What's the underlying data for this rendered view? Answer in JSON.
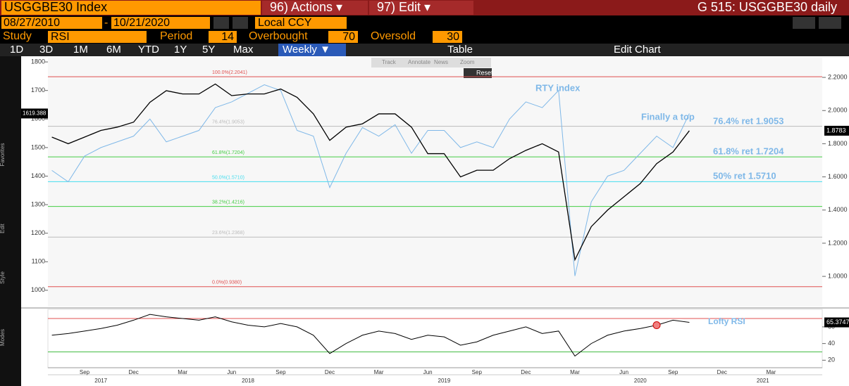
{
  "header": {
    "ticker": "USGGBE30 Index",
    "actions": "96) Actions ▾",
    "edit": "97) Edit ▾",
    "page": "G 515: USGGBE30 daily"
  },
  "toolbar": {
    "start_date": "08/27/2010",
    "end_date": "10/21/2020",
    "currency": "Local CCY",
    "study_label": "Study",
    "study": "RSI",
    "period_label": "Period",
    "period": 14,
    "overbought_label": "Overbought",
    "overbought": 70,
    "oversold_label": "Oversold",
    "oversold": 30,
    "ranges": [
      "1D",
      "3D",
      "1M",
      "6M",
      "YTD",
      "1Y",
      "5Y",
      "Max"
    ],
    "frequency": "Weekly ▼",
    "table": "Table",
    "edit_chart": "Edit Chart",
    "tools": [
      "Track",
      "Annotate",
      "News",
      "Zoom"
    ],
    "reset": "Reset",
    "side_labels": [
      "Favorites",
      "Edit",
      "Style",
      "Modes"
    ]
  },
  "chart_data": {
    "type": "line",
    "categories": [
      null,
      null,
      "Sep",
      null,
      null,
      "Dec",
      null,
      null,
      "Mar",
      null,
      null,
      "Jun",
      null,
      null,
      "Sep",
      null,
      null,
      "Dec",
      null,
      null,
      "Mar",
      null,
      null,
      "Jun",
      null,
      null,
      "Sep",
      null,
      null,
      "Dec",
      null,
      null,
      "Mar",
      null,
      null,
      "Jun",
      null,
      null,
      "Sep",
      null,
      null,
      "Dec",
      null,
      null,
      "Mar",
      null
    ],
    "years": [
      "2017",
      "2018",
      "2019",
      "2020",
      "2021"
    ],
    "ylim": [
      943,
      1815
    ],
    "yticks": [
      1000,
      1100,
      1200,
      1300,
      1400,
      1500,
      1600,
      1700,
      1800
    ],
    "y2lim": [
      0.818,
      2.319
    ],
    "y2ticks": [
      {
        "value": 1,
        "label": "1.0000"
      },
      {
        "value": 1.2,
        "label": "1.2000"
      },
      {
        "value": 1.4,
        "label": "1.4000"
      },
      {
        "value": 1.6,
        "label": "1.6000"
      },
      {
        "value": 1.8,
        "label": "1.8000"
      },
      {
        "value": 2,
        "label": "2.0000"
      },
      {
        "value": 2.2,
        "label": "2.2000"
      }
    ],
    "series": [
      {
        "name": "USGGBE30",
        "color": "#000000",
        "axis": "y2",
        "values": [
          1.84,
          1.8,
          1.84,
          1.88,
          1.9,
          1.93,
          2.05,
          2.12,
          2.1,
          2.1,
          2.16,
          2.09,
          2.1,
          2.1,
          2.13,
          2.08,
          1.98,
          1.82,
          1.9,
          1.92,
          1.98,
          1.98,
          1.9,
          1.74,
          1.74,
          1.6,
          1.64,
          1.64,
          1.71,
          1.76,
          1.8,
          1.75,
          1.1,
          1.3,
          1.4,
          1.48,
          1.56,
          1.68,
          1.75,
          1.8783,
          null,
          null,
          null,
          null,
          null,
          null
        ]
      },
      {
        "name": "RTY index",
        "color": "#7fb8e8",
        "axis": "y",
        "values": [
          1420,
          1380,
          1470,
          1500,
          1520,
          1540,
          1600,
          1520,
          1540,
          1560,
          1640,
          1660,
          1690,
          1720,
          1700,
          1560,
          1540,
          1360,
          1480,
          1570,
          1540,
          1580,
          1480,
          1560,
          1560,
          1500,
          1520,
          1500,
          1600,
          1660,
          1640,
          1700,
          1050,
          1310,
          1400,
          1420,
          1480,
          1540,
          1500,
          1619.388,
          null,
          null,
          null,
          null,
          null,
          null
        ]
      }
    ],
    "fib_levels": [
      {
        "label": "100.0%(2.2041)",
        "value": 2.2041,
        "color": "#e05050"
      },
      {
        "label": "76.4%(1.9053)",
        "value": 1.9053,
        "color": "#bbbbbb"
      },
      {
        "label": "61.8%(1.7204)",
        "value": 1.7204,
        "color": "#44cc44"
      },
      {
        "label": "50.0%(1.5710)",
        "value": 1.571,
        "color": "#44ddee"
      },
      {
        "label": "38.2%(1.4216)",
        "value": 1.4216,
        "color": "#44cc44"
      },
      {
        "label": "23.6%(1.2368)",
        "value": 1.2368,
        "color": "#bbbbbb"
      },
      {
        "label": "0.0%(0.9380)",
        "value": 0.938,
        "color": "#e05050"
      }
    ],
    "annotations": [
      "RTY index",
      "Finally a top",
      "76.4% ret 1.9053",
      "61.8% ret 1.7204",
      "50% ret 1.5710"
    ],
    "rsi": {
      "name": "RSI",
      "color": "#000000",
      "ylim": [
        11,
        81
      ],
      "yticks": [
        20,
        40,
        60
      ],
      "annotation": "Lofty RSI",
      "values": [
        50,
        52,
        55,
        58,
        62,
        68,
        75,
        72,
        70,
        68,
        72,
        66,
        62,
        60,
        64,
        60,
        50,
        28,
        40,
        50,
        55,
        52,
        45,
        50,
        48,
        38,
        42,
        50,
        55,
        60,
        52,
        55,
        25,
        40,
        50,
        55,
        58,
        62,
        68,
        65.3747,
        null,
        null,
        null,
        null,
        null,
        null
      ]
    }
  }
}
